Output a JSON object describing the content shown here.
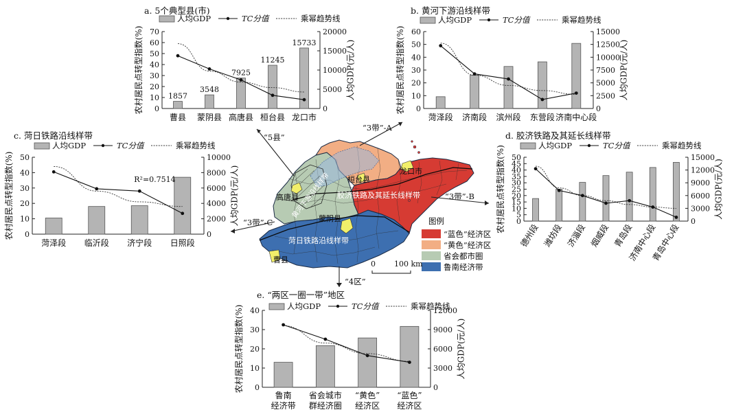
{
  "legend": {
    "gdp": "人均GDP",
    "tc": "TC分值",
    "trend": "乘幂趋势线"
  },
  "chart_data": [
    {
      "id": "a",
      "type": "bar+line",
      "title": "a. 5个典型县(市)",
      "ylabel_left": "农村居民点转型指数(%)",
      "ylabel_right": "人均GDP(元/人)",
      "ylim_left": [
        0,
        70
      ],
      "yticks_left": [
        0,
        10,
        20,
        30,
        40,
        50,
        60,
        70
      ],
      "ylim_right": [
        0,
        20000
      ],
      "yticks_right": [
        0,
        5000,
        10000,
        15000,
        20000
      ],
      "categories": [
        "曹县",
        "蒙阴县",
        "高唐县",
        "桓台县",
        "龙口市"
      ],
      "gdp": [
        1857,
        3548,
        7925,
        11245,
        15733
      ],
      "gdp_labels": [
        "1857",
        "3548",
        "7925",
        "11245",
        "15733"
      ],
      "tc": [
        48,
        36,
        26,
        12,
        8
      ],
      "trend": [
        59,
        34,
        24,
        19,
        15
      ]
    },
    {
      "id": "b",
      "type": "bar+line",
      "title": "b. 黄河下游沿线样带",
      "ylabel_left": "农村居民点转型指数(%)",
      "ylabel_right": "人均GDP(元/人)",
      "ylim_left": [
        0,
        60
      ],
      "yticks_left": [
        0,
        10,
        20,
        30,
        40,
        50,
        60
      ],
      "ylim_right": [
        0,
        15000
      ],
      "yticks_right": [
        0,
        2500,
        5000,
        7500,
        10000,
        12500,
        15000
      ],
      "categories": [
        "菏泽段",
        "济南段",
        "滨州段",
        "东营段",
        "济南中心段"
      ],
      "gdp": [
        2300,
        6500,
        8200,
        9100,
        12700
      ],
      "tc": [
        49,
        27,
        23,
        7,
        12
      ],
      "trend": [
        51,
        26,
        18,
        14,
        11
      ]
    },
    {
      "id": "c",
      "type": "bar+line",
      "title": "c. 菏日铁路沿线样带",
      "ylabel_left": "农村居民点转型指数(%)",
      "ylabel_right": "人均GDP(元/人)",
      "ylim_left": [
        0,
        50
      ],
      "yticks_left": [
        0,
        10,
        20,
        30,
        40,
        50
      ],
      "ylim_right": [
        0,
        10000
      ],
      "yticks_right": [
        0,
        2000,
        4000,
        6000,
        8000,
        10000
      ],
      "categories": [
        "菏泽段",
        "临沂段",
        "济宁段",
        "日照段"
      ],
      "gdp": [
        2100,
        3600,
        3700,
        7400
      ],
      "tc": [
        40.5,
        29.5,
        28,
        13.5
      ],
      "trend": [
        44,
        28,
        21,
        18
      ],
      "annotation": "R²=0.7514"
    },
    {
      "id": "d",
      "type": "bar+line",
      "title": "d. 胶济铁路及其延长线样带",
      "ylabel_left": "农村居民点转型指数(%)",
      "ylabel_right": "人均GDP(元/人)",
      "ylim_left": [
        0,
        50
      ],
      "yticks_left": [
        0,
        5,
        10,
        15,
        20,
        25,
        30,
        35,
        40,
        45,
        50
      ],
      "ylim_right": [
        0,
        15000
      ],
      "yticks_right": [
        0,
        3000,
        6000,
        9000,
        12000,
        15000
      ],
      "categories": [
        "德州段",
        "潍坊段",
        "济淄段",
        "烟威段",
        "青岛段",
        "济南中心段",
        "青岛中心段"
      ],
      "gdp": [
        5300,
        7500,
        9100,
        10700,
        11500,
        12600,
        13800
      ],
      "tc": [
        41,
        24,
        20,
        14,
        16,
        11,
        3
      ],
      "trend": [
        43,
        26,
        20,
        16,
        13,
        11,
        10
      ]
    },
    {
      "id": "e",
      "type": "bar+line",
      "title": "e. “两区一圈一带”地区",
      "ylabel_left": "农村居民点转型指数(%)",
      "ylabel_right": "人均GDP(元/人)",
      "ylim_left": [
        0,
        40
      ],
      "yticks_left": [
        0,
        10,
        20,
        30,
        40
      ],
      "ylim_right": [
        0,
        12000
      ],
      "yticks_right": [
        0,
        3000,
        6000,
        9000,
        12000
      ],
      "categories": [
        [
          "鲁南",
          "经济带"
        ],
        [
          "省会城市",
          "群经济圈"
        ],
        [
          "“黄色”",
          "经济区"
        ],
        [
          "“蓝色”",
          "经济区"
        ]
      ],
      "gdp": [
        3900,
        6500,
        7700,
        9500
      ],
      "tc": [
        32.5,
        25,
        16.5,
        13
      ],
      "trend": [
        32,
        23,
        17.5,
        13.5
      ]
    }
  ],
  "map": {
    "labels": {
      "gaotang": "高唐县",
      "huantai": "桓台县",
      "longkou": "龙口市",
      "mengyin": "蒙阴县",
      "caoxian": "曹县",
      "jiaoji": "胶济铁路及其延长线样带",
      "heri": "菏日铁路沿线样带",
      "huanghe": "黄河下游沿线样带"
    },
    "legend_title": "图例",
    "legend": [
      {
        "label": "“蓝色”经济区",
        "color": "#d63b33"
      },
      {
        "label": "“黄色”经济区",
        "color": "#f2ae84"
      },
      {
        "label": "省会都市圈",
        "color": "#b7cbb3"
      },
      {
        "label": "鲁南经济带",
        "color": "#3d6fb0"
      }
    ],
    "scale_label_0": "0",
    "scale_label": "100 km",
    "arrows": {
      "a": "“5县”",
      "b": "“3带”-A",
      "c": "“3带”-C",
      "d": "“3带”-B",
      "e": "“4区”"
    }
  }
}
